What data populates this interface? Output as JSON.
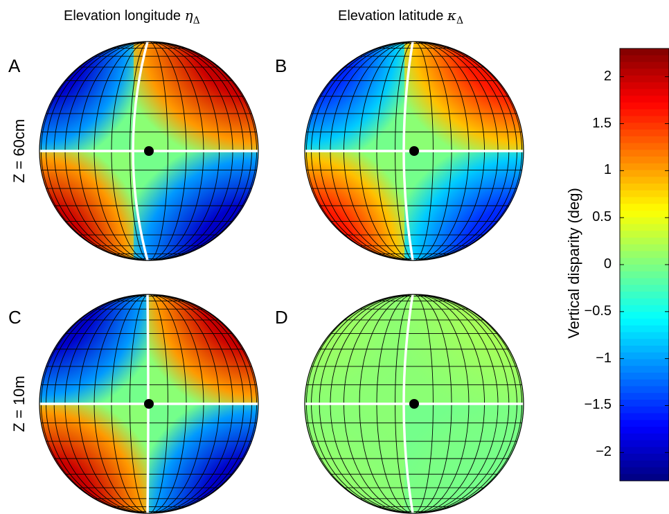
{
  "columns": [
    {
      "title": "Elevation longitude",
      "symbol": "η",
      "subscript": "Δ"
    },
    {
      "title": "Elevation latitude",
      "symbol": "κ",
      "subscript": "Δ"
    }
  ],
  "rows": [
    "Z = 60cm",
    "Z = 10m"
  ],
  "panels": [
    "A",
    "B",
    "C",
    "D"
  ],
  "colorbar": {
    "title": "Vertical disparity (deg)",
    "ticks": [
      "2",
      "1.5",
      "1",
      "0.5",
      "0",
      "−0.5",
      "−1",
      "−1.5",
      "−2"
    ],
    "range": [
      -2.3,
      2.3
    ],
    "colormap": "jet"
  },
  "chart_data": [
    {
      "type": "heatmap",
      "panel": "A",
      "quantity": "Elevation longitude η_Δ",
      "condition": "Z = 60cm",
      "quadrant_values_deg": {
        "upper_left": -2.3,
        "upper_right": 2.3,
        "lower_left": 2.3,
        "lower_right": -2.3
      },
      "zero_lines": [
        "horizontal meridian",
        "vertical meridian (curved)"
      ]
    },
    {
      "type": "heatmap",
      "panel": "B",
      "quantity": "Elevation latitude κ_Δ",
      "condition": "Z = 60cm",
      "quadrant_values_deg": {
        "upper_left": -1.8,
        "upper_right": 1.9,
        "lower_left": 1.9,
        "lower_right": -1.8
      },
      "zero_lines": [
        "horizontal meridian",
        "vertical meridian (curved)"
      ]
    },
    {
      "type": "heatmap",
      "panel": "C",
      "quantity": "Elevation longitude η_Δ",
      "condition": "Z = 10m",
      "quadrant_values_deg": {
        "upper_left": -2.3,
        "upper_right": 2.3,
        "lower_left": 2.3,
        "lower_right": -2.3
      },
      "zero_lines": [
        "horizontal meridian",
        "vertical meridian"
      ]
    },
    {
      "type": "heatmap",
      "panel": "D",
      "quantity": "Elevation latitude κ_Δ",
      "condition": "Z = 10m",
      "quadrant_values_deg": {
        "upper_left": 0.15,
        "upper_right": 0.2,
        "lower_left": 0.1,
        "lower_right": -0.05
      },
      "zero_lines": [
        "horizontal meridian",
        "vertical meridian (curved)"
      ]
    }
  ]
}
